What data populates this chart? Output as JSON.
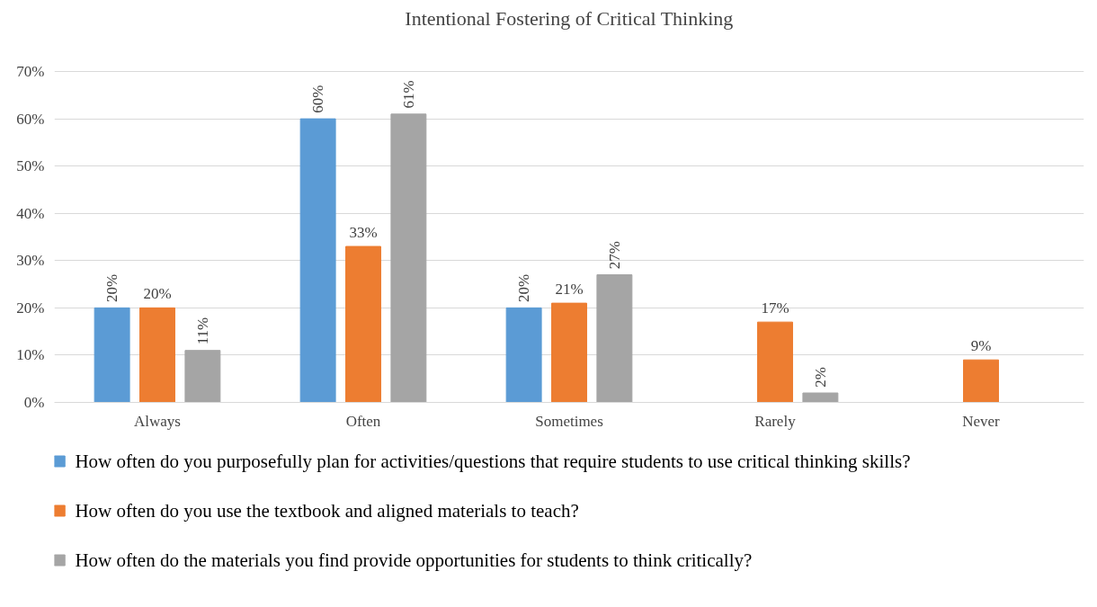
{
  "chart_data": {
    "type": "bar",
    "title": "Intentional Fostering of Critical Thinking",
    "categories": [
      "Always",
      "Often",
      "Sometimes",
      "Rarely",
      "Never"
    ],
    "series": [
      {
        "name": "How often do you purposefully plan for activities/questions that require students to use critical thinking skills?",
        "color": "#5b9bd5",
        "values": [
          20,
          60,
          20,
          null,
          null
        ],
        "value_labels": [
          "20%",
          "60%",
          "20%",
          null,
          null
        ]
      },
      {
        "name": "How often do you use the textbook and aligned materials to teach?",
        "color": "#ed7d31",
        "values": [
          20,
          33,
          21,
          17,
          9
        ],
        "value_labels": [
          "20%",
          "33%",
          "21%",
          "17%",
          "9%"
        ]
      },
      {
        "name": "How often do the materials you find provide opportunities for students to think critically?",
        "color": "#a5a5a5",
        "values": [
          11,
          61,
          27,
          2,
          null
        ],
        "value_labels": [
          "11%",
          "61%",
          "27%",
          "2%",
          null
        ]
      }
    ],
    "ylim": [
      0,
      70
    ],
    "yticks": [
      {
        "value": 0,
        "label": "0%"
      },
      {
        "value": 10,
        "label": "10%"
      },
      {
        "value": 20,
        "label": "20%"
      },
      {
        "value": 30,
        "label": "30%"
      },
      {
        "value": 40,
        "label": "40%"
      },
      {
        "value": 50,
        "label": "50%"
      },
      {
        "value": 60,
        "label": "60%"
      },
      {
        "value": 70,
        "label": "70%"
      }
    ],
    "grid": "y",
    "legend": "bottom"
  }
}
